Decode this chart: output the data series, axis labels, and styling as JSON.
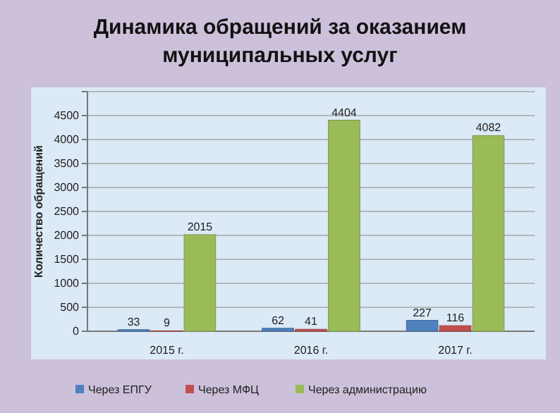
{
  "chart_data": {
    "type": "bar",
    "title": "Динамика обращений за оказанием муниципальных услуг",
    "ylabel": "Количество обращений",
    "categories": [
      "2015 г.",
      "2016 г.",
      "2017 г."
    ],
    "series": [
      {
        "name": "Через ЕПГУ",
        "color": "#4f81bd",
        "values": [
          33,
          62,
          227
        ]
      },
      {
        "name": "Через МФЦ",
        "color": "#c0504d",
        "values": [
          9,
          41,
          116
        ]
      },
      {
        "name": "Через администрацию",
        "color": "#9bbb59",
        "values": [
          2015,
          4404,
          4082
        ]
      }
    ],
    "ylim": [
      0,
      5000
    ],
    "yticks": [
      0,
      500,
      1000,
      1500,
      2000,
      2500,
      3000,
      3500,
      4000,
      4500,
      {
        "value": 5000,
        "label": null
      }
    ],
    "grid": "y",
    "legend": "bottom",
    "data_labels": true
  }
}
